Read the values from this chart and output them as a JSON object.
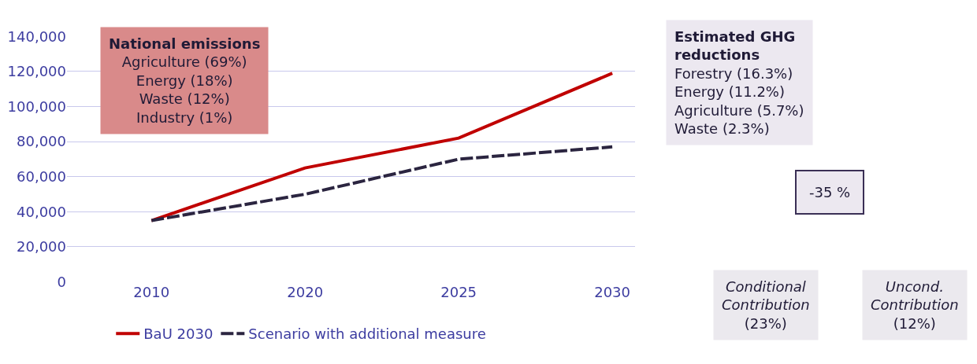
{
  "chart_data": {
    "type": "line",
    "categories": [
      "2010",
      "2020",
      "2025",
      "2030"
    ],
    "series": [
      {
        "name": "BaU 2030",
        "color": "#c00000",
        "line_style": "solid",
        "values": [
          35000,
          65000,
          82000,
          119000
        ]
      },
      {
        "name": "Scenario with additional measure",
        "color": "#2b2540",
        "line_style": "dashed",
        "values": [
          35000,
          50000,
          70000,
          77000
        ]
      }
    ],
    "ylim": [
      0,
      140000
    ],
    "yticks": [
      {
        "value": 0,
        "label": "0"
      },
      {
        "value": 20000,
        "label": "20,000"
      },
      {
        "value": 40000,
        "label": "40,000"
      },
      {
        "value": 60000,
        "label": "60,000"
      },
      {
        "value": 80000,
        "label": "80,000"
      },
      {
        "value": 100000,
        "label": "100,000"
      },
      {
        "value": 120000,
        "label": "120,000"
      },
      {
        "value": 140000,
        "label": "140,000"
      }
    ],
    "grid": "y",
    "legend": "bottom",
    "marker": "none",
    "annotations": [
      "National emissions\nAgriculture (69%)\nEnergy (18%)\nWaste (12%)\nIndustry (1%)",
      "Estimated GHG\nreductions\nForestry (16.3%)\nEnergy (11.2%)\nAgriculture (5.7%)\nWaste (2.3%)",
      "-35 %",
      "Conditional\nContribution\n(23%)",
      "Uncond.\nContribution\n(12%)"
    ]
  }
}
